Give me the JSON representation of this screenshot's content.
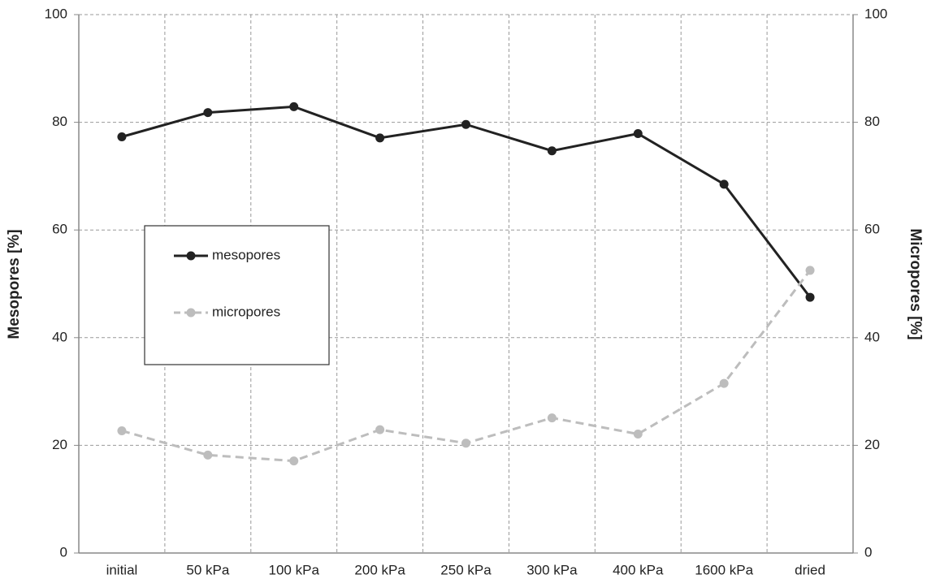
{
  "chart_data": {
    "type": "line",
    "y_label": "Mesopores [%]",
    "y2_label": "Micropores [%]",
    "categories": [
      "initial",
      "50 kPa",
      "100 kPa",
      "200 kPa",
      "250 kPa",
      "300 kPa",
      "400 kPa",
      "1600 kPa",
      "dried"
    ],
    "series": [
      {
        "name": "mesopores",
        "color": "#222222",
        "line_style": "solid",
        "values": [
          77.3,
          81.8,
          82.9,
          77.1,
          79.6,
          74.7,
          77.9,
          68.5,
          47.5
        ]
      },
      {
        "name": "micropores",
        "color": "#bdbdbd",
        "line_style": "dashed",
        "axis": "y2",
        "values": [
          22.7,
          18.2,
          17.1,
          22.9,
          20.4,
          25.1,
          22.1,
          31.5,
          52.5
        ]
      }
    ],
    "ylim": [
      0,
      100
    ],
    "yticks": [
      0,
      20,
      40,
      60,
      80,
      100
    ],
    "y2lim": [
      0,
      100
    ],
    "y2ticks": [
      0,
      20,
      40,
      60,
      80,
      100
    ],
    "grid": true,
    "legend": "left"
  }
}
